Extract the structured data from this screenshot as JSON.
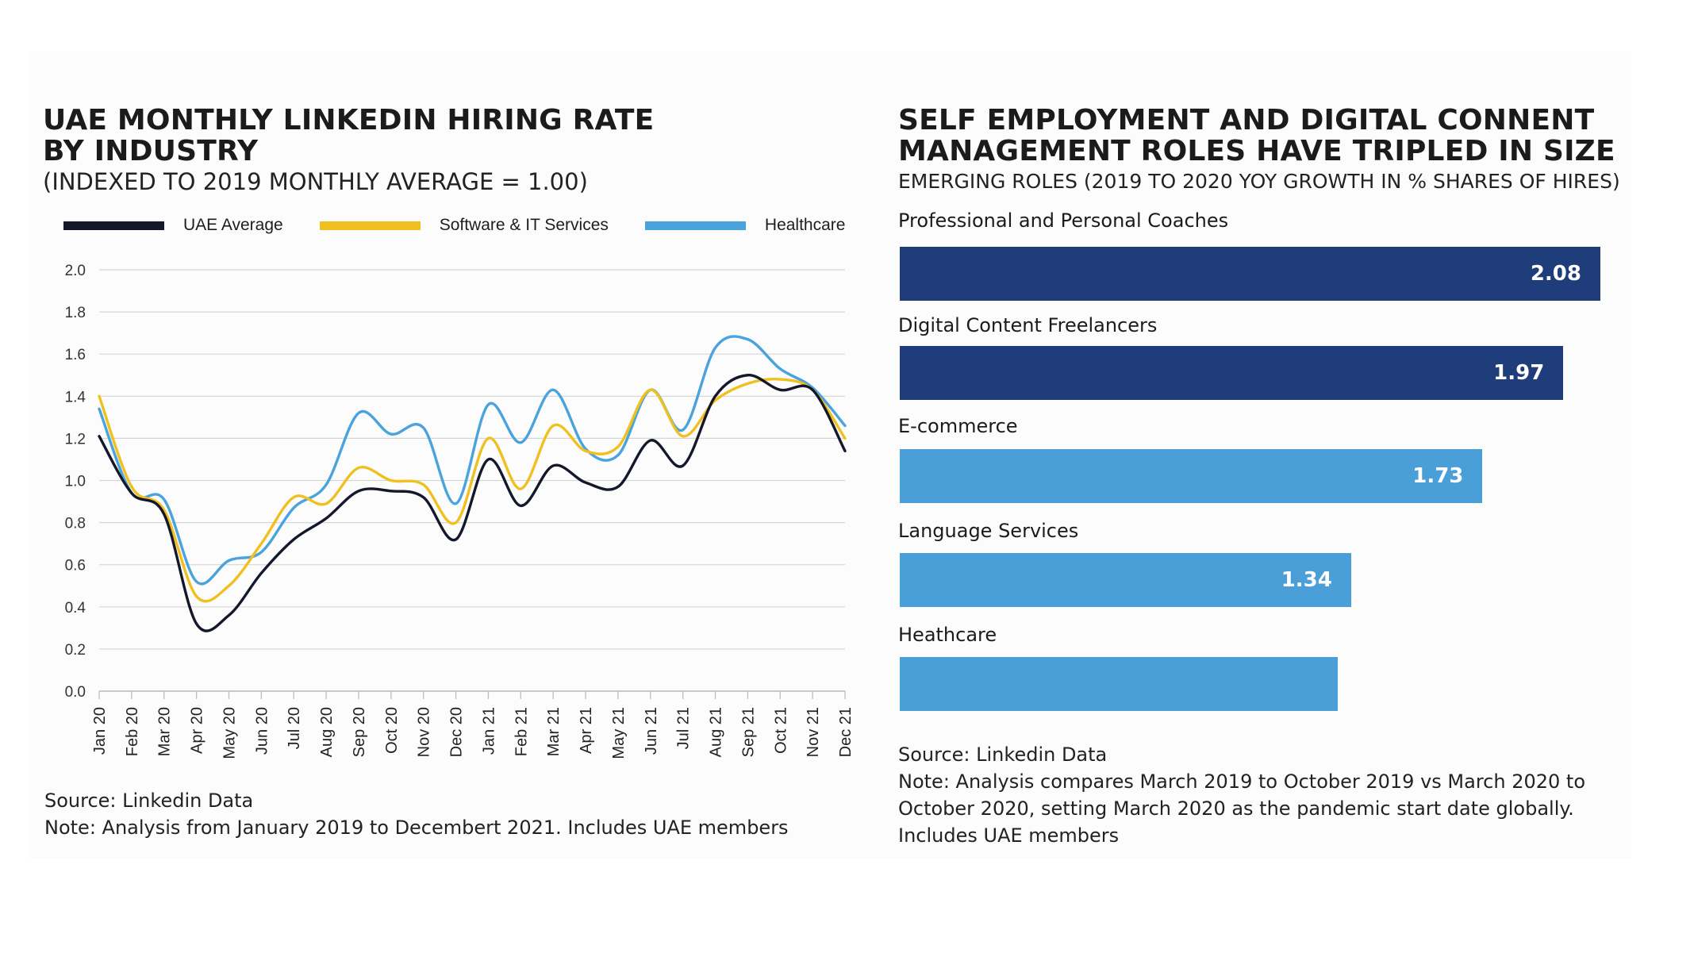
{
  "left": {
    "title_line1": "UAE MONTHLY LINKEDIN HIRING RATE",
    "title_line2": "BY INDUSTRY",
    "subtitle": "(INDEXED TO 2019 MONTHLY AVERAGE = 1.00)",
    "source": "Source: Linkedin Data",
    "note": "Note: Analysis from January 2019 to Decembert 2021. Includes UAE members"
  },
  "right": {
    "title_line1": "SELF EMPLOYMENT AND DIGITAL CONNENT",
    "title_line2": "MANAGEMENT ROLES HAVE TRIPLED IN SIZE",
    "subtitle": "EMERGING ROLES (2019 TO 2020 YOY GROWTH IN % SHARES OF HIRES)",
    "source": "Source: Linkedin Data",
    "note_line1": "Note: Analysis compares March 2019 to October 2019 vs March 2020 to",
    "note_line2": "October 2020, setting March 2020 as the pandemic start date globally.",
    "note_line3": "Includes UAE members"
  },
  "chart_data": [
    {
      "type": "line",
      "x": [
        "Jan 20",
        "Feb 20",
        "Mar 20",
        "Apr 20",
        "May 20",
        "Jun 20",
        "Jul 20",
        "Aug 20",
        "Sep 20",
        "Oct 20",
        "Nov 20",
        "Dec 20",
        "Jan 21",
        "Feb 21",
        "Mar 21",
        "Apr 21",
        "May 21",
        "Jun 21",
        "Jul 21",
        "Aug 21",
        "Sep 21",
        "Oct 21",
        "Nov 21",
        "Dec 21"
      ],
      "series": [
        {
          "name": "UAE Average",
          "color": "#14182b",
          "values": [
            1.21,
            0.94,
            0.84,
            0.32,
            0.36,
            0.56,
            0.72,
            0.82,
            0.95,
            0.95,
            0.92,
            0.72,
            1.1,
            0.88,
            1.07,
            0.99,
            0.97,
            1.19,
            1.07,
            1.4,
            1.5,
            1.43,
            1.43,
            1.14
          ]
        },
        {
          "name": "Software & IT Services",
          "color": "#f0c020",
          "values": [
            1.4,
            0.97,
            0.86,
            0.45,
            0.5,
            0.7,
            0.92,
            0.89,
            1.06,
            1.0,
            0.98,
            0.8,
            1.2,
            0.96,
            1.26,
            1.14,
            1.16,
            1.43,
            1.21,
            1.38,
            1.46,
            1.48,
            1.43,
            1.2
          ]
        },
        {
          "name": "Healthcare",
          "color": "#4aa3dc",
          "values": [
            1.34,
            0.94,
            0.91,
            0.52,
            0.62,
            0.66,
            0.87,
            0.98,
            1.32,
            1.22,
            1.25,
            0.89,
            1.36,
            1.18,
            1.43,
            1.15,
            1.12,
            1.43,
            1.24,
            1.63,
            1.67,
            1.53,
            1.44,
            1.26
          ]
        }
      ],
      "yticks": [
        "2.0",
        "1.8",
        "1.6",
        "1.4",
        "1.2",
        "1.0",
        "0.8",
        "0.6",
        "0.4",
        "0.2",
        "0.0"
      ],
      "ylim": [
        0,
        2.0
      ],
      "grid": true,
      "legend_position": "top"
    },
    {
      "type": "bar",
      "orientation": "horizontal",
      "categories": [
        "Professional and Personal Coaches",
        "Digital Content Freelancers",
        "E-commerce",
        "Language Services",
        "Heathcare"
      ],
      "values": [
        2.08,
        1.97,
        1.73,
        1.34,
        1.3
      ],
      "labels": [
        "2.08",
        "1.97",
        "1.73",
        "1.34",
        ""
      ],
      "colors": [
        "#1f3d7a",
        "#1f3d7a",
        "#4a9fd8",
        "#4a9fd8",
        "#4a9fd8"
      ]
    }
  ]
}
